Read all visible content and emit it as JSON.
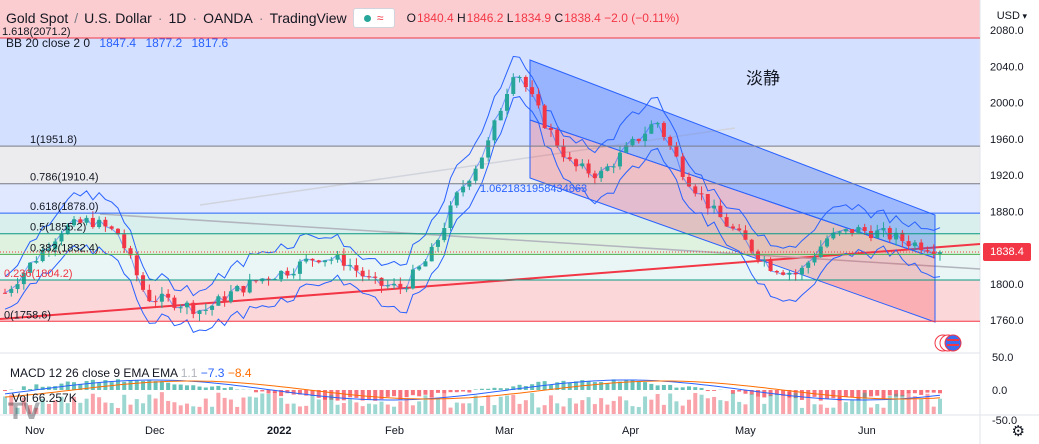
{
  "header": {
    "symbol": "Gold Spot",
    "quote": "U.S. Dollar",
    "interval": "1D",
    "exchange": "OANDA",
    "platform": "TradingView",
    "wave_icon": "≈",
    "ohlc": {
      "o_label": "O",
      "o": "1840.4",
      "h_label": "H",
      "h": "1846.2",
      "l_label": "L",
      "l": "1834.9",
      "c_label": "C",
      "c": "1838.4",
      "change": "−2.0 (−0.11%)"
    }
  },
  "indicator_bb": {
    "label": "BB 20 close 2 0",
    "v1": "1847.4",
    "v2": "1877.2",
    "v3": "1817.6"
  },
  "indicator_macd": {
    "label": "MACD 12 26 close 9 EMA EMA",
    "v1": "1.1",
    "v2": "−7.3",
    "v3": "−8.4"
  },
  "indicator_vol": {
    "label": "Vol",
    "value": "66.257K"
  },
  "currency": "USD",
  "current_price": "1838.4",
  "annotation": "淡静",
  "trendline_label": "1.0621831958434863",
  "fib_levels": [
    {
      "label": "1.618(2071.2)",
      "price": 2071.2
    },
    {
      "label": "1(1951.8)",
      "price": 1951.8
    },
    {
      "label": "0.786(1910.4)",
      "price": 1910.4
    },
    {
      "label": "0.618(1878.0)",
      "price": 1878.0
    },
    {
      "label": "0.5(1855.2)",
      "price": 1855.2
    },
    {
      "label": "0.382(1832.4)",
      "price": 1832.4
    },
    {
      "label": "0.236(1804.2)",
      "price": 1804.2
    },
    {
      "label": "0(1758.6)",
      "price": 1758.6
    }
  ],
  "price_axis": [
    "2080.0",
    "2040.0",
    "2000.0",
    "1960.0",
    "1920.0",
    "1880.0",
    "1800.0",
    "1760.0"
  ],
  "macd_axis": [
    "50.0",
    "0.0",
    "-50.0"
  ],
  "time_axis": [
    "Nov",
    "Dec",
    "2022",
    "Feb",
    "Mar",
    "Apr",
    "May",
    "Jun"
  ],
  "colors": {
    "up": "#26a69a",
    "down": "#f23645",
    "bb": "#2962ff",
    "channel_blue": "#2962ff",
    "channel_red": "#f23645"
  },
  "chart_data": {
    "type": "candlestick",
    "x_range": [
      "Nov 2021",
      "Jun 2022"
    ],
    "y_range": [
      1750,
      2085
    ],
    "close_approx": [
      1790,
      1825,
      1860,
      1870,
      1855,
      1785,
      1780,
      1770,
      1790,
      1805,
      1815,
      1830,
      1825,
      1800,
      1795,
      1830,
      1900,
      1950,
      2040,
      1980,
      1930,
      1920,
      1950,
      1980,
      1920,
      1880,
      1850,
      1820,
      1810,
      1850,
      1860,
      1855,
      1845,
      1838.4
    ]
  }
}
